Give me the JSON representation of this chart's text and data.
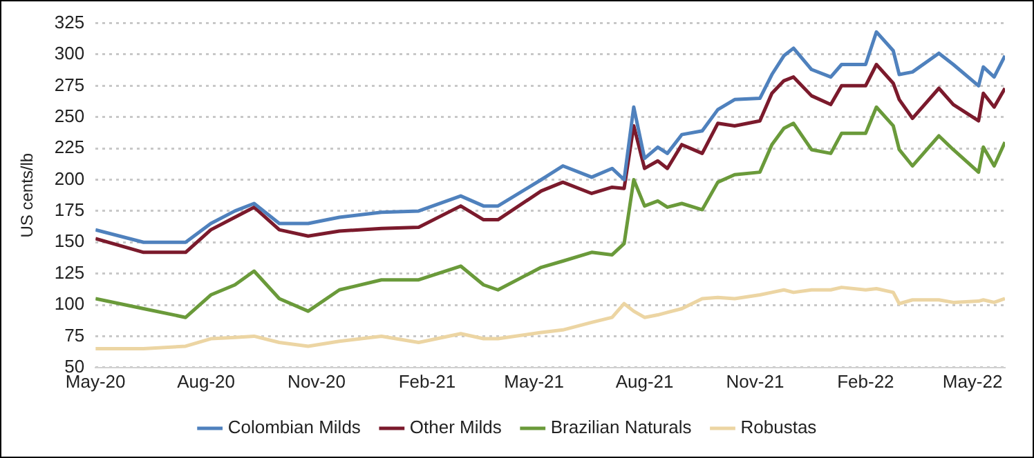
{
  "chart_data": {
    "type": "line",
    "ylabel": "US cents/lb",
    "x": [
      "2020-05-01",
      "2020-06-10",
      "2020-07-15",
      "2020-08-05",
      "2020-08-25",
      "2020-09-10",
      "2020-10-01",
      "2020-10-25",
      "2020-11-20",
      "2020-12-25",
      "2021-01-25",
      "2021-03-01",
      "2021-03-20",
      "2021-04-01",
      "2021-05-07",
      "2021-05-25",
      "2021-06-18",
      "2021-07-05",
      "2021-07-15",
      "2021-07-23",
      "2021-08-01",
      "2021-08-12",
      "2021-08-20",
      "2021-09-01",
      "2021-09-18",
      "2021-10-01",
      "2021-10-15",
      "2021-11-05",
      "2021-11-15",
      "2021-11-25",
      "2021-12-03",
      "2021-12-18",
      "2022-01-03",
      "2022-01-12",
      "2022-02-01",
      "2022-02-10",
      "2022-02-24",
      "2022-03-01",
      "2022-03-12",
      "2022-04-03",
      "2022-04-15",
      "2022-05-06",
      "2022-05-10",
      "2022-05-19",
      "2022-05-28"
    ],
    "series": [
      {
        "name": "Colombian Milds",
        "color": "#4f81bd",
        "values": [
          160,
          150,
          150,
          165,
          175,
          181,
          165,
          165,
          170,
          174,
          175,
          187,
          179,
          179,
          200,
          211,
          202,
          209,
          200,
          258,
          217,
          226,
          221,
          236,
          239,
          256,
          264,
          265,
          284,
          299,
          305,
          288,
          282,
          292,
          292,
          318,
          303,
          284,
          286,
          301,
          292,
          275,
          290,
          282,
          299
        ]
      },
      {
        "name": "Other Milds",
        "color": "#7b1a2c",
        "values": [
          153,
          142,
          142,
          160,
          170,
          178,
          160,
          155,
          159,
          161,
          162,
          179,
          168,
          168,
          191,
          198,
          189,
          194,
          193,
          243,
          209,
          215,
          209,
          228,
          221,
          245,
          243,
          247,
          269,
          279,
          282,
          267,
          260,
          275,
          275,
          292,
          277,
          264,
          249,
          273,
          260,
          247,
          269,
          258,
          273
        ]
      },
      {
        "name": "Brazilian Naturals",
        "color": "#6a9a3a",
        "values": [
          105,
          97,
          90,
          108,
          116,
          127,
          105,
          95,
          112,
          120,
          120,
          131,
          116,
          112,
          130,
          135,
          142,
          140,
          149,
          200,
          179,
          183,
          178,
          181,
          176,
          198,
          204,
          206,
          228,
          241,
          245,
          224,
          221,
          237,
          237,
          258,
          243,
          224,
          211,
          235,
          224,
          206,
          226,
          211,
          230
        ]
      },
      {
        "name": "Robustas",
        "color": "#ecd5a3",
        "values": [
          65,
          65,
          67,
          73,
          74,
          75,
          70,
          67,
          71,
          75,
          70,
          77,
          73,
          73,
          78,
          80,
          86,
          90,
          101,
          95,
          90,
          92,
          94,
          97,
          105,
          106,
          105,
          108,
          110,
          112,
          110,
          112,
          112,
          114,
          112,
          113,
          110,
          101,
          104,
          104,
          102,
          103,
          104,
          102,
          105
        ]
      }
    ],
    "xlim": [
      "2020-05-01",
      "2022-05-28"
    ],
    "xticks": [
      {
        "value": "2020-05-01",
        "label": "May-20"
      },
      {
        "value": "2020-08-01",
        "label": "Aug-20"
      },
      {
        "value": "2020-11-01",
        "label": "Nov-20"
      },
      {
        "value": "2021-02-01",
        "label": "Feb-21"
      },
      {
        "value": "2021-05-01",
        "label": "May-21"
      },
      {
        "value": "2021-08-01",
        "label": "Aug-21"
      },
      {
        "value": "2021-11-01",
        "label": "Nov-21"
      },
      {
        "value": "2022-02-01",
        "label": "Feb-22"
      },
      {
        "value": "2022-05-01",
        "label": "May-22"
      }
    ],
    "ylim": [
      50,
      325
    ],
    "yticks": [
      50,
      75,
      100,
      125,
      150,
      175,
      200,
      225,
      250,
      275,
      300,
      325
    ],
    "grid": "y",
    "legend": "bottom",
    "marker": "none",
    "line_style": "solid"
  }
}
